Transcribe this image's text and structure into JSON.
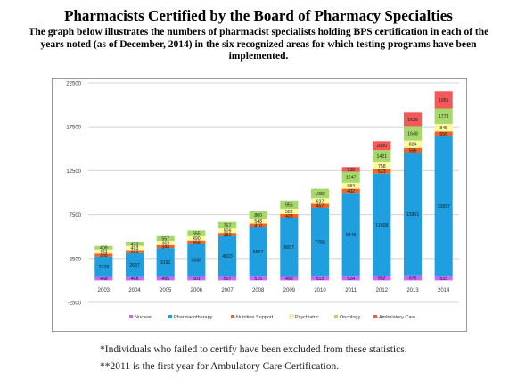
{
  "header": {
    "title": "Pharmacists Certified by the Board of Pharmacy Specialties",
    "subtitle": "The graph below illustrates the numbers of pharmacist specialists holding BPS certification in each of the years noted (as of December, 2014) in the six recognized areas for which testing programs have been implemented."
  },
  "footnotes": {
    "first": "*Individuals who failed to certify have been excluded from these statistics.",
    "second": "**2011 is the first year for Ambulatory Care Certification."
  },
  "chart_data": {
    "type": "bar",
    "stacked": true,
    "categories": [
      "2003",
      "2004",
      "2005",
      "2006",
      "2007",
      "2008",
      "2009",
      "2010",
      "2011",
      "2012",
      "2013",
      "2014"
    ],
    "yticks": [
      "22500",
      "17500",
      "12500",
      "7500",
      "2500",
      "-2500"
    ],
    "ylim": [
      -2500,
      22500
    ],
    "grid": true,
    "legend_position": "bottom",
    "series": [
      {
        "name": "Nuclear",
        "color": "#cc66ff",
        "values": [
          468,
          468,
          495,
          501,
          507,
          515,
          496,
          513,
          524,
          552,
          575,
          533
        ],
        "labels": [
          "468",
          "468",
          "495",
          "501",
          "507",
          "515",
          "496",
          "513",
          "524",
          "552",
          "575",
          "533"
        ]
      },
      {
        "name": "Pharmacotherapy",
        "color": "#1f9ee0",
        "values": [
          2228,
          2637,
          3191,
          3688,
          4523,
          5567,
          6657,
          7766,
          9445,
          11608,
          13961,
          15897
        ],
        "labels": [
          "2228",
          "2637",
          "3191",
          "3688",
          "4523",
          "5567",
          "6657",
          "7766",
          "9445",
          "11608",
          "13961",
          "15897"
        ]
      },
      {
        "name": "Nutrition Support",
        "color": "#e8662a",
        "values": [
          365,
          339,
          344,
          358,
          382,
          410,
          423,
          457,
          482,
          523,
          569,
          556
        ],
        "labels": [
          "365",
          "339",
          "344",
          "358",
          "382",
          "410",
          "423",
          "457",
          "482",
          "523",
          "569",
          "556"
        ]
      },
      {
        "name": "Psychiatric",
        "color": "#fffaa0",
        "values": [
          461,
          493,
          463,
          490,
          509,
          548,
          582,
          627,
          684,
          758,
          824,
          845
        ],
        "labels": [
          "461",
          "493",
          "463",
          "490",
          "509",
          "548",
          "582",
          "627",
          "684",
          "758",
          "824",
          "845"
        ]
      },
      {
        "name": "Oncology",
        "color": "#a6d86a",
        "values": [
          409,
          473,
          557,
          655,
          757,
          860,
          956,
          1083,
          1247,
          1421,
          1648,
          1773
        ],
        "labels": [
          "409",
          "473",
          "557",
          "655",
          "757",
          "860",
          "956",
          "1083",
          "1247",
          "1421",
          "1648",
          "1773"
        ]
      },
      {
        "name": "Ambulatory Care",
        "color": "#f25a5a",
        "values": [
          0,
          0,
          0,
          0,
          0,
          0,
          0,
          0,
          538,
          1000,
          1539,
          1956
        ],
        "labels": [
          "",
          "",
          "",
          "",
          "",
          "",
          "",
          "",
          "538",
          "1000",
          "1539",
          "1956"
        ]
      }
    ]
  }
}
